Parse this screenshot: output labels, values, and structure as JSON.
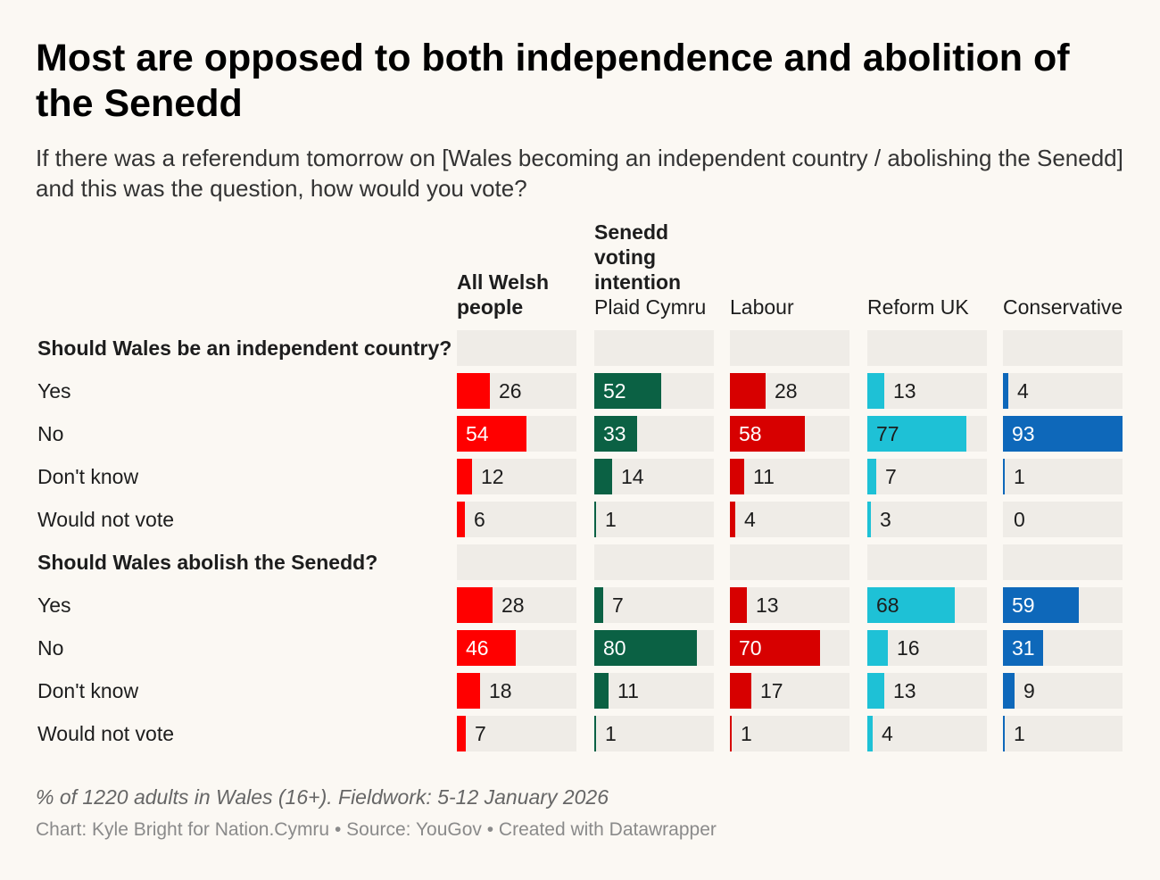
{
  "title": "Most are opposed to both independence and abolition of the Senedd",
  "subtitle": "If there was a referendum tomorrow on [Wales becoming an independent country / abolishing the Senedd] and this was the question, how would you vote?",
  "notes": "% of 1220 adults in Wales (16+). Fieldwork: 5-12 January 2026",
  "byline": "Chart: Kyle Bright for Nation.Cymru • Source: YouGov • Created with Datawrapper",
  "chart_data": {
    "type": "bar",
    "title": "Most are opposed to both independence and abolition of the Senedd",
    "subtitle": "If there was a referendum tomorrow on [Wales becoming an independent country / abolishing the Senedd] and this was the question, how would you vote?",
    "unit": "%",
    "xlim": [
      0,
      93
    ],
    "columns": [
      {
        "bold": "All Welsh people",
        "label": "",
        "color": "#ff0000"
      },
      {
        "bold": "Senedd voting intention",
        "label": "Plaid Cymru",
        "color": "#0b6144"
      },
      {
        "bold": "",
        "label": "Labour",
        "color": "#d70000"
      },
      {
        "bold": "",
        "label": "Reform UK",
        "color": "#1ec1d6",
        "dark_text": true
      },
      {
        "bold": "",
        "label": "Conservative",
        "color": "#0e68ba"
      }
    ],
    "groups": [
      {
        "name": "Should Wales be an independent country?",
        "rows": [
          {
            "label": "Yes",
            "values": [
              26,
              52,
              28,
              13,
              4
            ]
          },
          {
            "label": "No",
            "values": [
              54,
              33,
              58,
              77,
              93
            ]
          },
          {
            "label": "Don't know",
            "values": [
              12,
              14,
              11,
              7,
              1
            ]
          },
          {
            "label": "Would not vote",
            "values": [
              6,
              1,
              4,
              3,
              0
            ]
          }
        ]
      },
      {
        "name": "Should Wales abolish the Senedd?",
        "rows": [
          {
            "label": "Yes",
            "values": [
              28,
              7,
              13,
              68,
              59
            ]
          },
          {
            "label": "No",
            "values": [
              46,
              80,
              70,
              16,
              31
            ]
          },
          {
            "label": "Don't know",
            "values": [
              18,
              11,
              17,
              13,
              9
            ]
          },
          {
            "label": "Would not vote",
            "values": [
              7,
              1,
              1,
              4,
              1
            ]
          }
        ]
      }
    ]
  }
}
